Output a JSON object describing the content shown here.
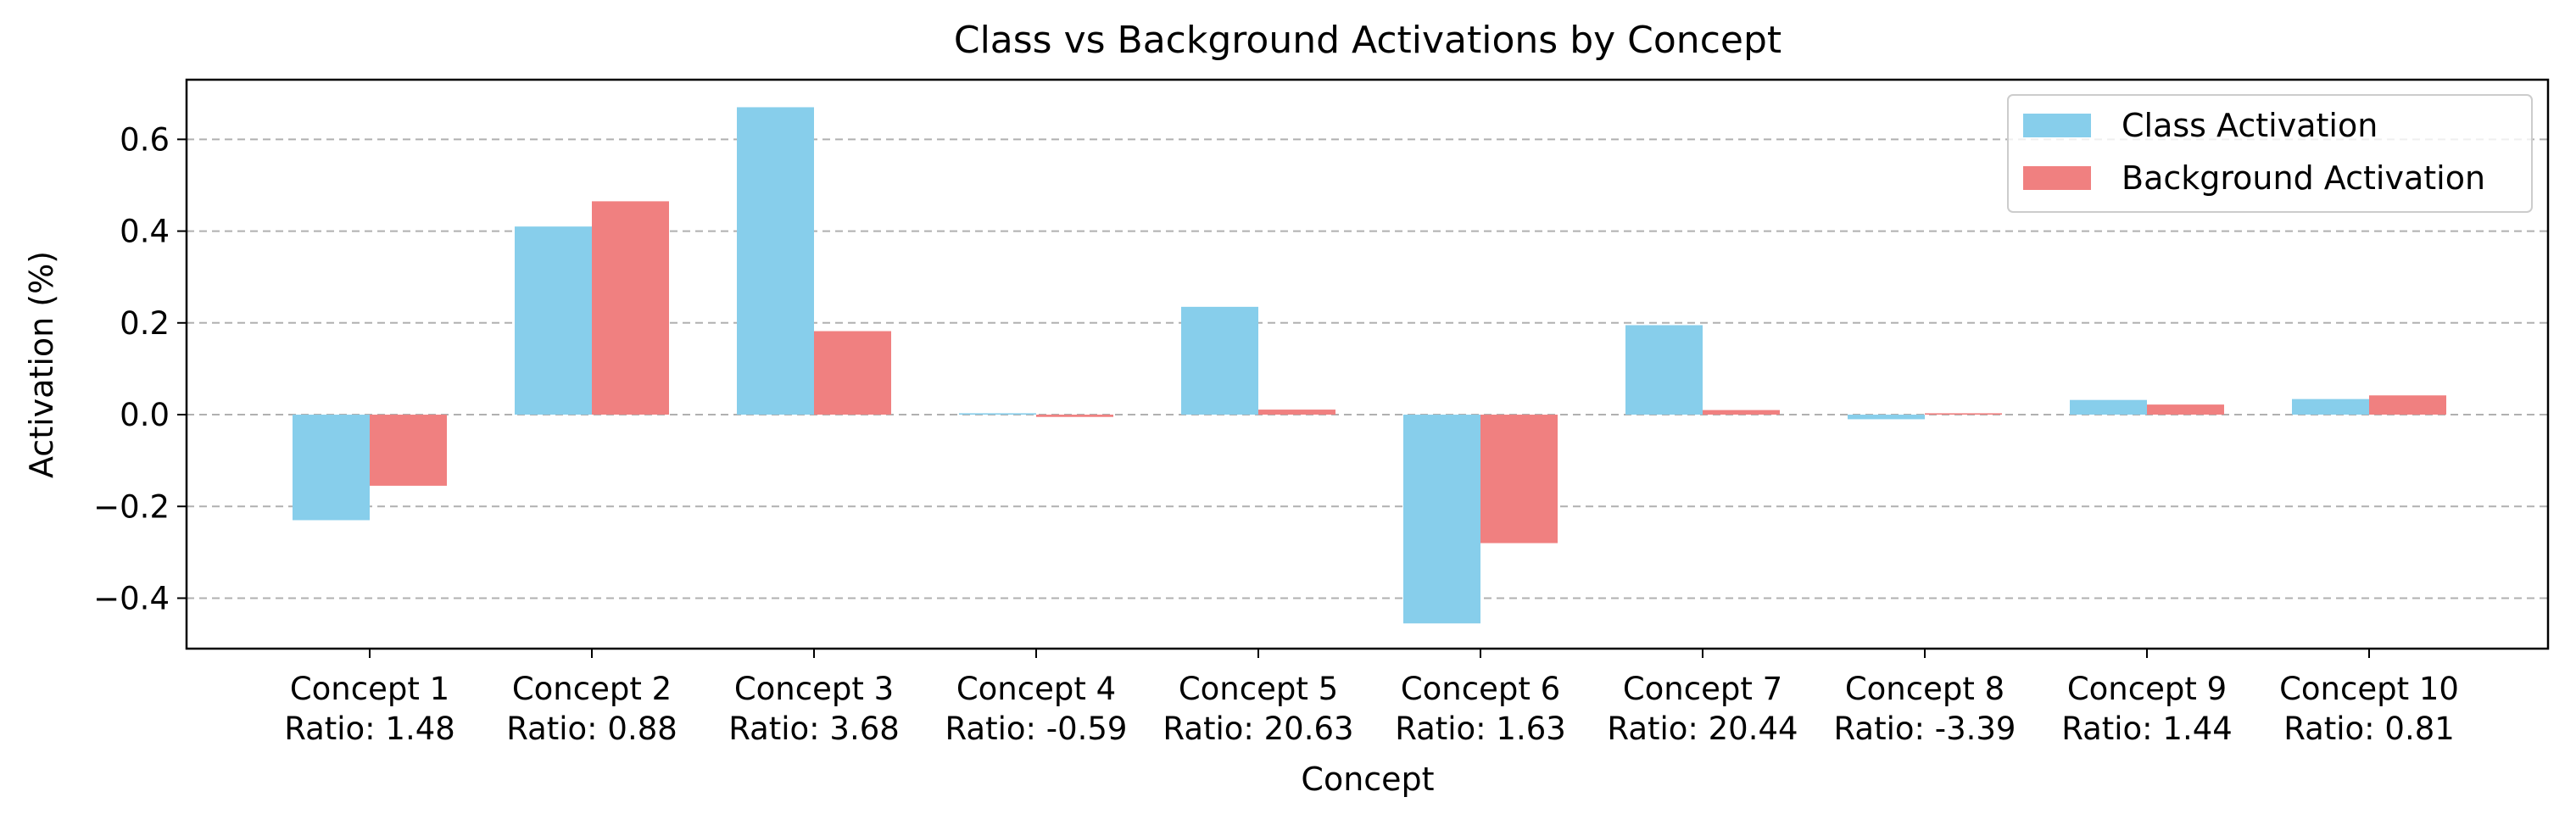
{
  "chart_data": {
    "type": "bar",
    "title": "Class vs Background Activations by Concept",
    "xlabel": "Concept",
    "ylabel": "Activation (%)",
    "ylim": [
      -0.51,
      0.73
    ],
    "yticks": [
      -0.4,
      -0.2,
      0.0,
      0.2,
      0.4,
      0.6
    ],
    "ytick_labels": [
      "−0.4",
      "−0.2",
      "0.0",
      "0.2",
      "0.4",
      "0.6"
    ],
    "grid": "y-dashed",
    "legend_position": "top-right",
    "categories": [
      "Concept 1",
      "Concept 2",
      "Concept 3",
      "Concept 4",
      "Concept 5",
      "Concept 6",
      "Concept 7",
      "Concept 8",
      "Concept 9",
      "Concept 10"
    ],
    "category_sublabels": [
      "Ratio: 1.48",
      "Ratio: 0.88",
      "Ratio: 3.68",
      "Ratio: -0.59",
      "Ratio: 20.63",
      "Ratio: 1.63",
      "Ratio: 20.44",
      "Ratio: -3.39",
      "Ratio: 1.44",
      "Ratio: 0.81"
    ],
    "series": [
      {
        "name": "Class Activation",
        "color": "#87CEEB",
        "values": [
          -0.23,
          0.41,
          0.67,
          0.003,
          0.235,
          -0.455,
          0.195,
          -0.01,
          0.032,
          0.034
        ]
      },
      {
        "name": "Background Activation",
        "color": "#F08080",
        "values": [
          -0.155,
          0.465,
          0.182,
          -0.005,
          0.011,
          -0.28,
          0.01,
          0.003,
          0.022,
          0.042
        ]
      }
    ]
  }
}
